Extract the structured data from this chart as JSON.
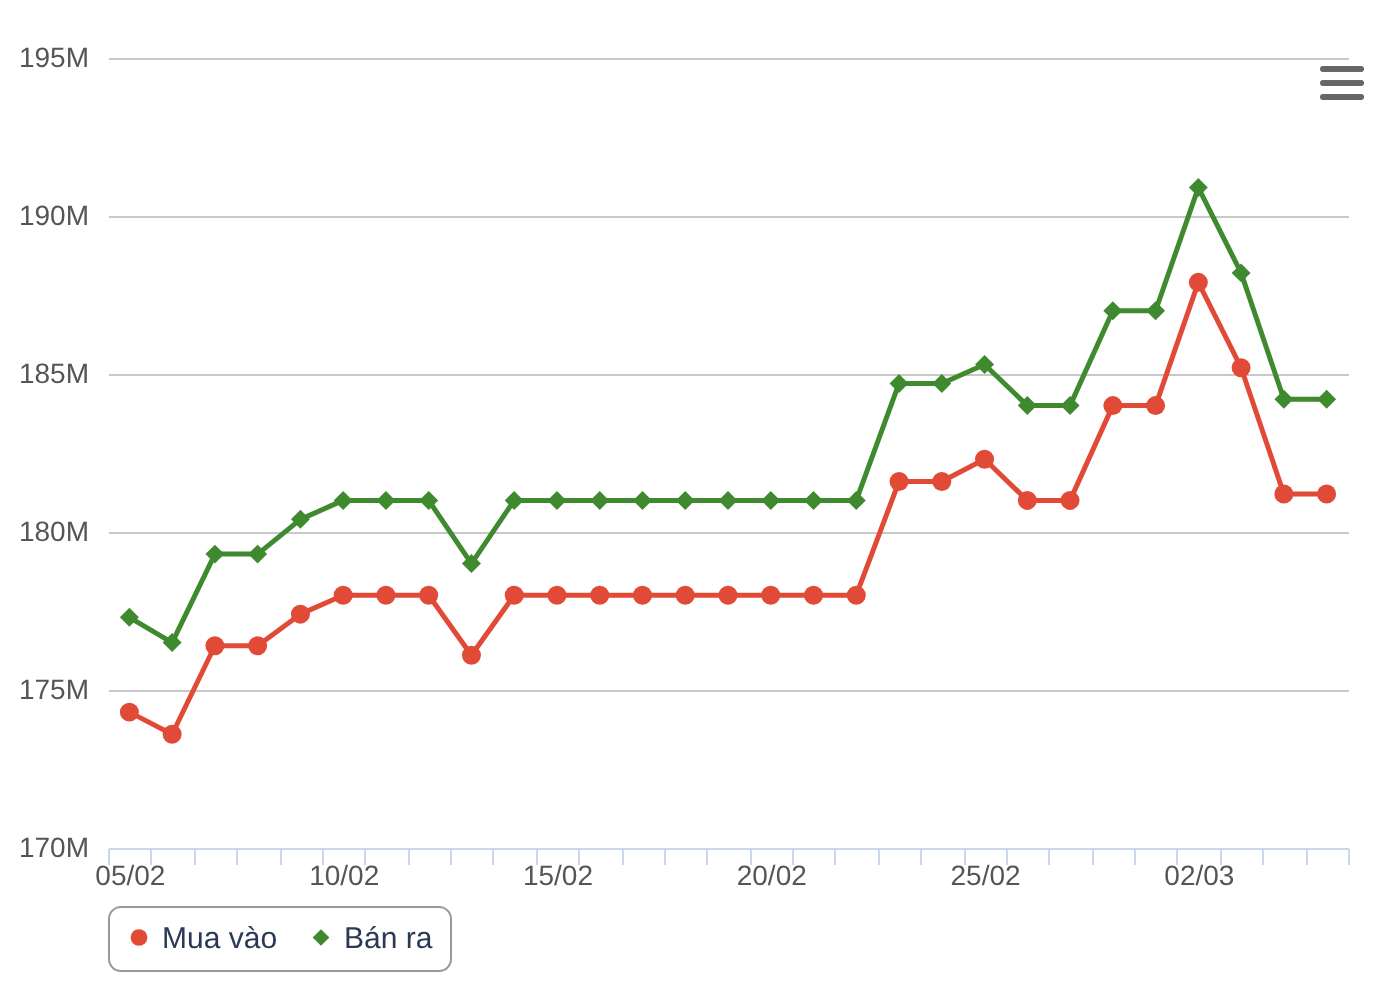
{
  "chart_data": {
    "type": "line",
    "categories": [
      "05/02",
      null,
      null,
      null,
      null,
      "10/02",
      null,
      null,
      null,
      null,
      "15/02",
      null,
      null,
      null,
      null,
      "20/02",
      null,
      null,
      null,
      null,
      "25/02",
      null,
      null,
      null,
      null,
      "02/03",
      null,
      null,
      null
    ],
    "series": [
      {
        "name": "Mua vào",
        "color": "#e04a36",
        "marker": "circle",
        "values": [
          174.3,
          173.6,
          176.4,
          176.4,
          177.4,
          178,
          178,
          178,
          176.1,
          178,
          178,
          178,
          178,
          178,
          178,
          178,
          178,
          178,
          181.6,
          181.6,
          182.3,
          181,
          181,
          184,
          184,
          187.9,
          185.2,
          181.2,
          181.2
        ]
      },
      {
        "name": "Bán ra",
        "color": "#3f8a2e",
        "marker": "diamond",
        "values": [
          177.3,
          176.5,
          179.3,
          179.3,
          180.4,
          181,
          181,
          181,
          179,
          181,
          181,
          181,
          181,
          181,
          181,
          181,
          181,
          181,
          184.7,
          184.7,
          185.3,
          184,
          184,
          187,
          187,
          190.9,
          188.2,
          184.2,
          184.2
        ]
      }
    ],
    "ylim": [
      170,
      195
    ],
    "yticks": [
      {
        "value": 170,
        "label": "170M"
      },
      {
        "value": 175,
        "label": "175M"
      },
      {
        "value": 180,
        "label": "180M"
      },
      {
        "value": 185,
        "label": "185M"
      },
      {
        "value": 190,
        "label": "190M"
      },
      {
        "value": 195,
        "label": "195M"
      }
    ],
    "grid": "y",
    "legend": "bottom",
    "line_style": "solid"
  }
}
